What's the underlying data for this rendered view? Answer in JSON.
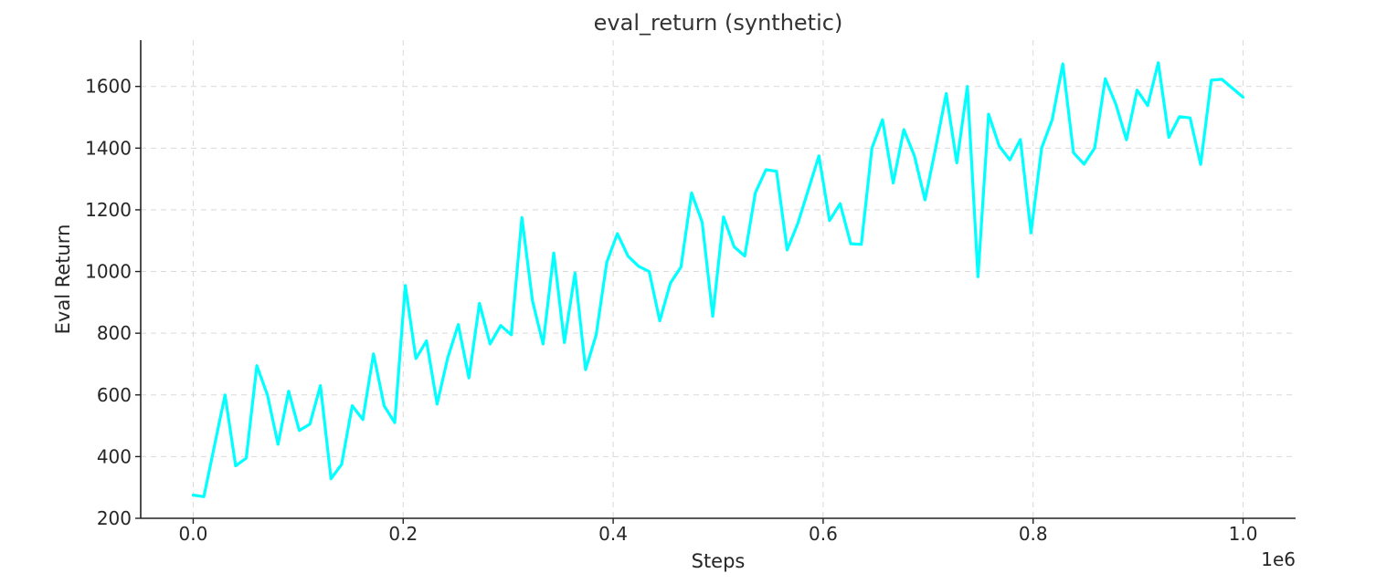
{
  "chart_data": {
    "type": "line",
    "title": "eval_return (synthetic)",
    "xlabel": "Steps",
    "ylabel": "Eval Return",
    "x_offset_label": "1e6",
    "xlim": [
      -0.05,
      1.05
    ],
    "ylim": [
      200,
      1750
    ],
    "x_ticks": [
      0.0,
      0.2,
      0.4,
      0.6,
      0.8,
      1.0
    ],
    "x_tick_labels": [
      "0.0",
      "0.2",
      "0.4",
      "0.6",
      "0.8",
      "1.0"
    ],
    "y_ticks": [
      200,
      400,
      600,
      800,
      1000,
      1200,
      1400,
      1600
    ],
    "y_tick_labels": [
      "200",
      "400",
      "600",
      "800",
      "1000",
      "1200",
      "1400",
      "1600"
    ],
    "grid": true,
    "series": [
      {
        "color": "#00ffff",
        "x": [
          0.0,
          0.0101,
          0.0202,
          0.0303,
          0.0404,
          0.0505,
          0.0606,
          0.0707,
          0.0808,
          0.0909,
          0.101,
          0.1111,
          0.1212,
          0.1313,
          0.1414,
          0.1515,
          0.1616,
          0.1717,
          0.1818,
          0.1919,
          0.202,
          0.2121,
          0.2222,
          0.2323,
          0.2424,
          0.2525,
          0.2626,
          0.2727,
          0.2828,
          0.2929,
          0.303,
          0.3131,
          0.3232,
          0.3333,
          0.3434,
          0.3535,
          0.3636,
          0.3737,
          0.3838,
          0.3939,
          0.404,
          0.4141,
          0.4242,
          0.4343,
          0.4444,
          0.4545,
          0.4646,
          0.4747,
          0.4848,
          0.4949,
          0.5051,
          0.5152,
          0.5253,
          0.5354,
          0.5455,
          0.5556,
          0.5657,
          0.5758,
          0.5859,
          0.596,
          0.6061,
          0.6162,
          0.6263,
          0.6364,
          0.6465,
          0.6566,
          0.6667,
          0.6768,
          0.6869,
          0.697,
          0.7071,
          0.7172,
          0.7273,
          0.7374,
          0.7475,
          0.7576,
          0.7677,
          0.7778,
          0.7879,
          0.798,
          0.8081,
          0.8182,
          0.8283,
          0.8384,
          0.8485,
          0.8586,
          0.8687,
          0.8788,
          0.8889,
          0.899,
          0.9091,
          0.9192,
          0.9293,
          0.9394,
          0.9495,
          0.9596,
          0.9697,
          0.9798,
          1.0
        ],
        "y": [
          275,
          270,
          435,
          600,
          370,
          395,
          695,
          600,
          440,
          612,
          485,
          505,
          630,
          328,
          375,
          565,
          520,
          733,
          565,
          510,
          955,
          718,
          775,
          570,
          720,
          828,
          655,
          897,
          765,
          825,
          795,
          1175,
          905,
          765,
          1060,
          770,
          995,
          682,
          795,
          1030,
          1123,
          1050,
          1017,
          1000,
          840,
          962,
          1015,
          1255,
          1160,
          855,
          1177,
          1080,
          1050,
          1255,
          1330,
          1325,
          1070,
          1155,
          1265,
          1375,
          1165,
          1220,
          1090,
          1088,
          1400,
          1492,
          1287,
          1460,
          1375,
          1232,
          1400,
          1577,
          1352,
          1600,
          983,
          1510,
          1407,
          1362,
          1428,
          1125,
          1400,
          1492,
          1673,
          1385,
          1348,
          1400,
          1625,
          1542,
          1427,
          1588,
          1538,
          1677,
          1435,
          1502,
          1498,
          1347,
          1620,
          1623,
          1565
        ]
      }
    ]
  }
}
